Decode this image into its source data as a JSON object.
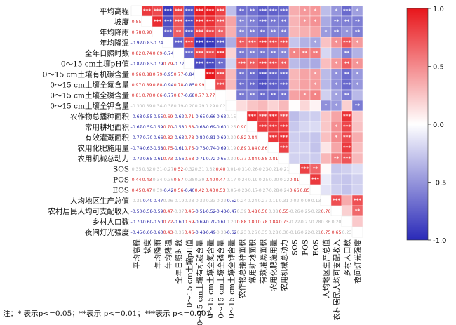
{
  "chart_data": {
    "type": "heatmap",
    "variables": [
      "平均高程",
      "坡度",
      "年均降雨",
      "年均降温",
      "全年日照时数",
      "0～15 cm土壤pH值",
      "0～15 cm土壤有机碳含量",
      "0～15 cm土壤全氮含量",
      "0～15 cm土壤全磷含量",
      "0～15 cm土壤全钾含量",
      "农作物总播种面积",
      "常用耕地面积",
      "有效灌溉面积",
      "农用化肥施用量",
      "农用机械总动力",
      "SOS",
      "POS",
      "EOS",
      "人均地区生产总值",
      "农村居民人均可支配收入",
      "乡村人口数",
      "夜间灯光强度"
    ],
    "lower_triangle_values": [
      [],
      [
        0.85
      ],
      [
        0.78,
        0.9
      ],
      [
        -0.92,
        -0.83,
        -0.74
      ],
      [
        0.82,
        0.74,
        0.69,
        -0.74
      ],
      [
        -0.82,
        -0.83,
        -0.79,
        0.79,
        -0.72
      ],
      [
        0.96,
        0.88,
        0.79,
        -0.95,
        0.77,
        -0.84
      ],
      [
        0.97,
        0.89,
        0.8,
        -0.94,
        0.78,
        -0.85,
        0.99
      ],
      [
        0.81,
        0.7,
        0.66,
        -0.77,
        0.87,
        -0.68,
        0.77,
        0.77
      ],
      [
        -0.3,
        0.39,
        0.34,
        -0.38,
        0.19,
        -0.2,
        0.29,
        0.29,
        0.02
      ],
      [
        -0.68,
        -0.55,
        -0.55,
        0.69,
        -0.62,
        0.71,
        -0.65,
        -0.66,
        -0.63,
        0.15
      ],
      [
        -0.67,
        -0.59,
        -0.59,
        0.7,
        -0.58,
        0.68,
        -0.68,
        -0.69,
        -0.6,
        0.25,
        0.9
      ],
      [
        -0.77,
        -0.7,
        -0.66,
        0.82,
        -0.63,
        0.78,
        -0.8,
        -0.81,
        -0.69,
        0.3,
        0.82,
        0.84
      ],
      [
        -0.74,
        -0.63,
        -0.58,
        0.75,
        -0.61,
        0.75,
        -0.73,
        -0.74,
        -0.69,
        0.19,
        0.89,
        0.84,
        0.86
      ],
      [
        -0.72,
        -0.65,
        -0.61,
        0.73,
        -0.56,
        0.68,
        -0.71,
        -0.72,
        -0.65,
        0.3,
        0.77,
        0.84,
        0.88,
        0.81
      ],
      [
        0.35,
        0.32,
        0.31,
        -0.27,
        0.52,
        -0.32,
        0.31,
        0.32,
        0.4,
        0.01,
        -0.31,
        -0.26,
        -0.23,
        -0.21,
        -0.21
      ],
      [
        0.44,
        0.43,
        0.34,
        -0.36,
        0.57,
        -0.38,
        0.39,
        0.4,
        0.47,
        0.17,
        -0.24,
        -0.19,
        -0.25,
        -0.2,
        -0.22,
        0.81
      ],
      [
        0.45,
        0.47,
        0.39,
        -0.42,
        0.56,
        -0.4,
        0.42,
        0.43,
        0.53,
        0.05,
        -0.23,
        -0.17,
        -0.27,
        -0.28,
        -0.24,
        0.66,
        0.85
      ],
      [
        -0.31,
        -0.4,
        -0.47,
        0.26,
        -0.19,
        0.28,
        -0.32,
        -0.33,
        -0.22,
        -0.52,
        0.24,
        0.24,
        0.27,
        0.11,
        0.31,
        0.02,
        -0.09,
        -0.13
      ],
      [
        -0.5,
        -0.58,
        -0.59,
        0.47,
        -0.37,
        0.45,
        -0.51,
        -0.52,
        -0.43,
        -0.47,
        0.39,
        0.48,
        0.5,
        0.38,
        0.55,
        -0.26,
        -0.25,
        -0.22,
        0.76
      ],
      [
        -0.7,
        -0.6,
        -0.5,
        0.72,
        -0.6,
        0.69,
        -0.69,
        -0.7,
        -0.61,
        0.2,
        0.88,
        0.8,
        0.78,
        0.84,
        0.73,
        -0.22,
        -0.27,
        -0.28,
        0.36,
        0.2
      ],
      [
        -0.45,
        -0.6,
        -0.6,
        0.43,
        -0.36,
        0.46,
        -0.48,
        -0.49,
        -0.33,
        -0.62,
        0.23,
        0.26,
        0.35,
        0.28,
        0.3,
        -0.16,
        -0.22,
        -0.21,
        0.75,
        0.65,
        0.23
      ]
    ],
    "significance_note": "注：* 表示p<=0.05；**表示 p<=0.01；***表示 p<=0.001。",
    "colorbar": {
      "min": -1.0,
      "max": 1.0,
      "ticks": [
        "1.0",
        "0.5",
        "0.0",
        "-0.5",
        "-1.0"
      ],
      "colors": [
        "#2a2ab8",
        "#ffffff",
        "#e8161b"
      ]
    }
  }
}
